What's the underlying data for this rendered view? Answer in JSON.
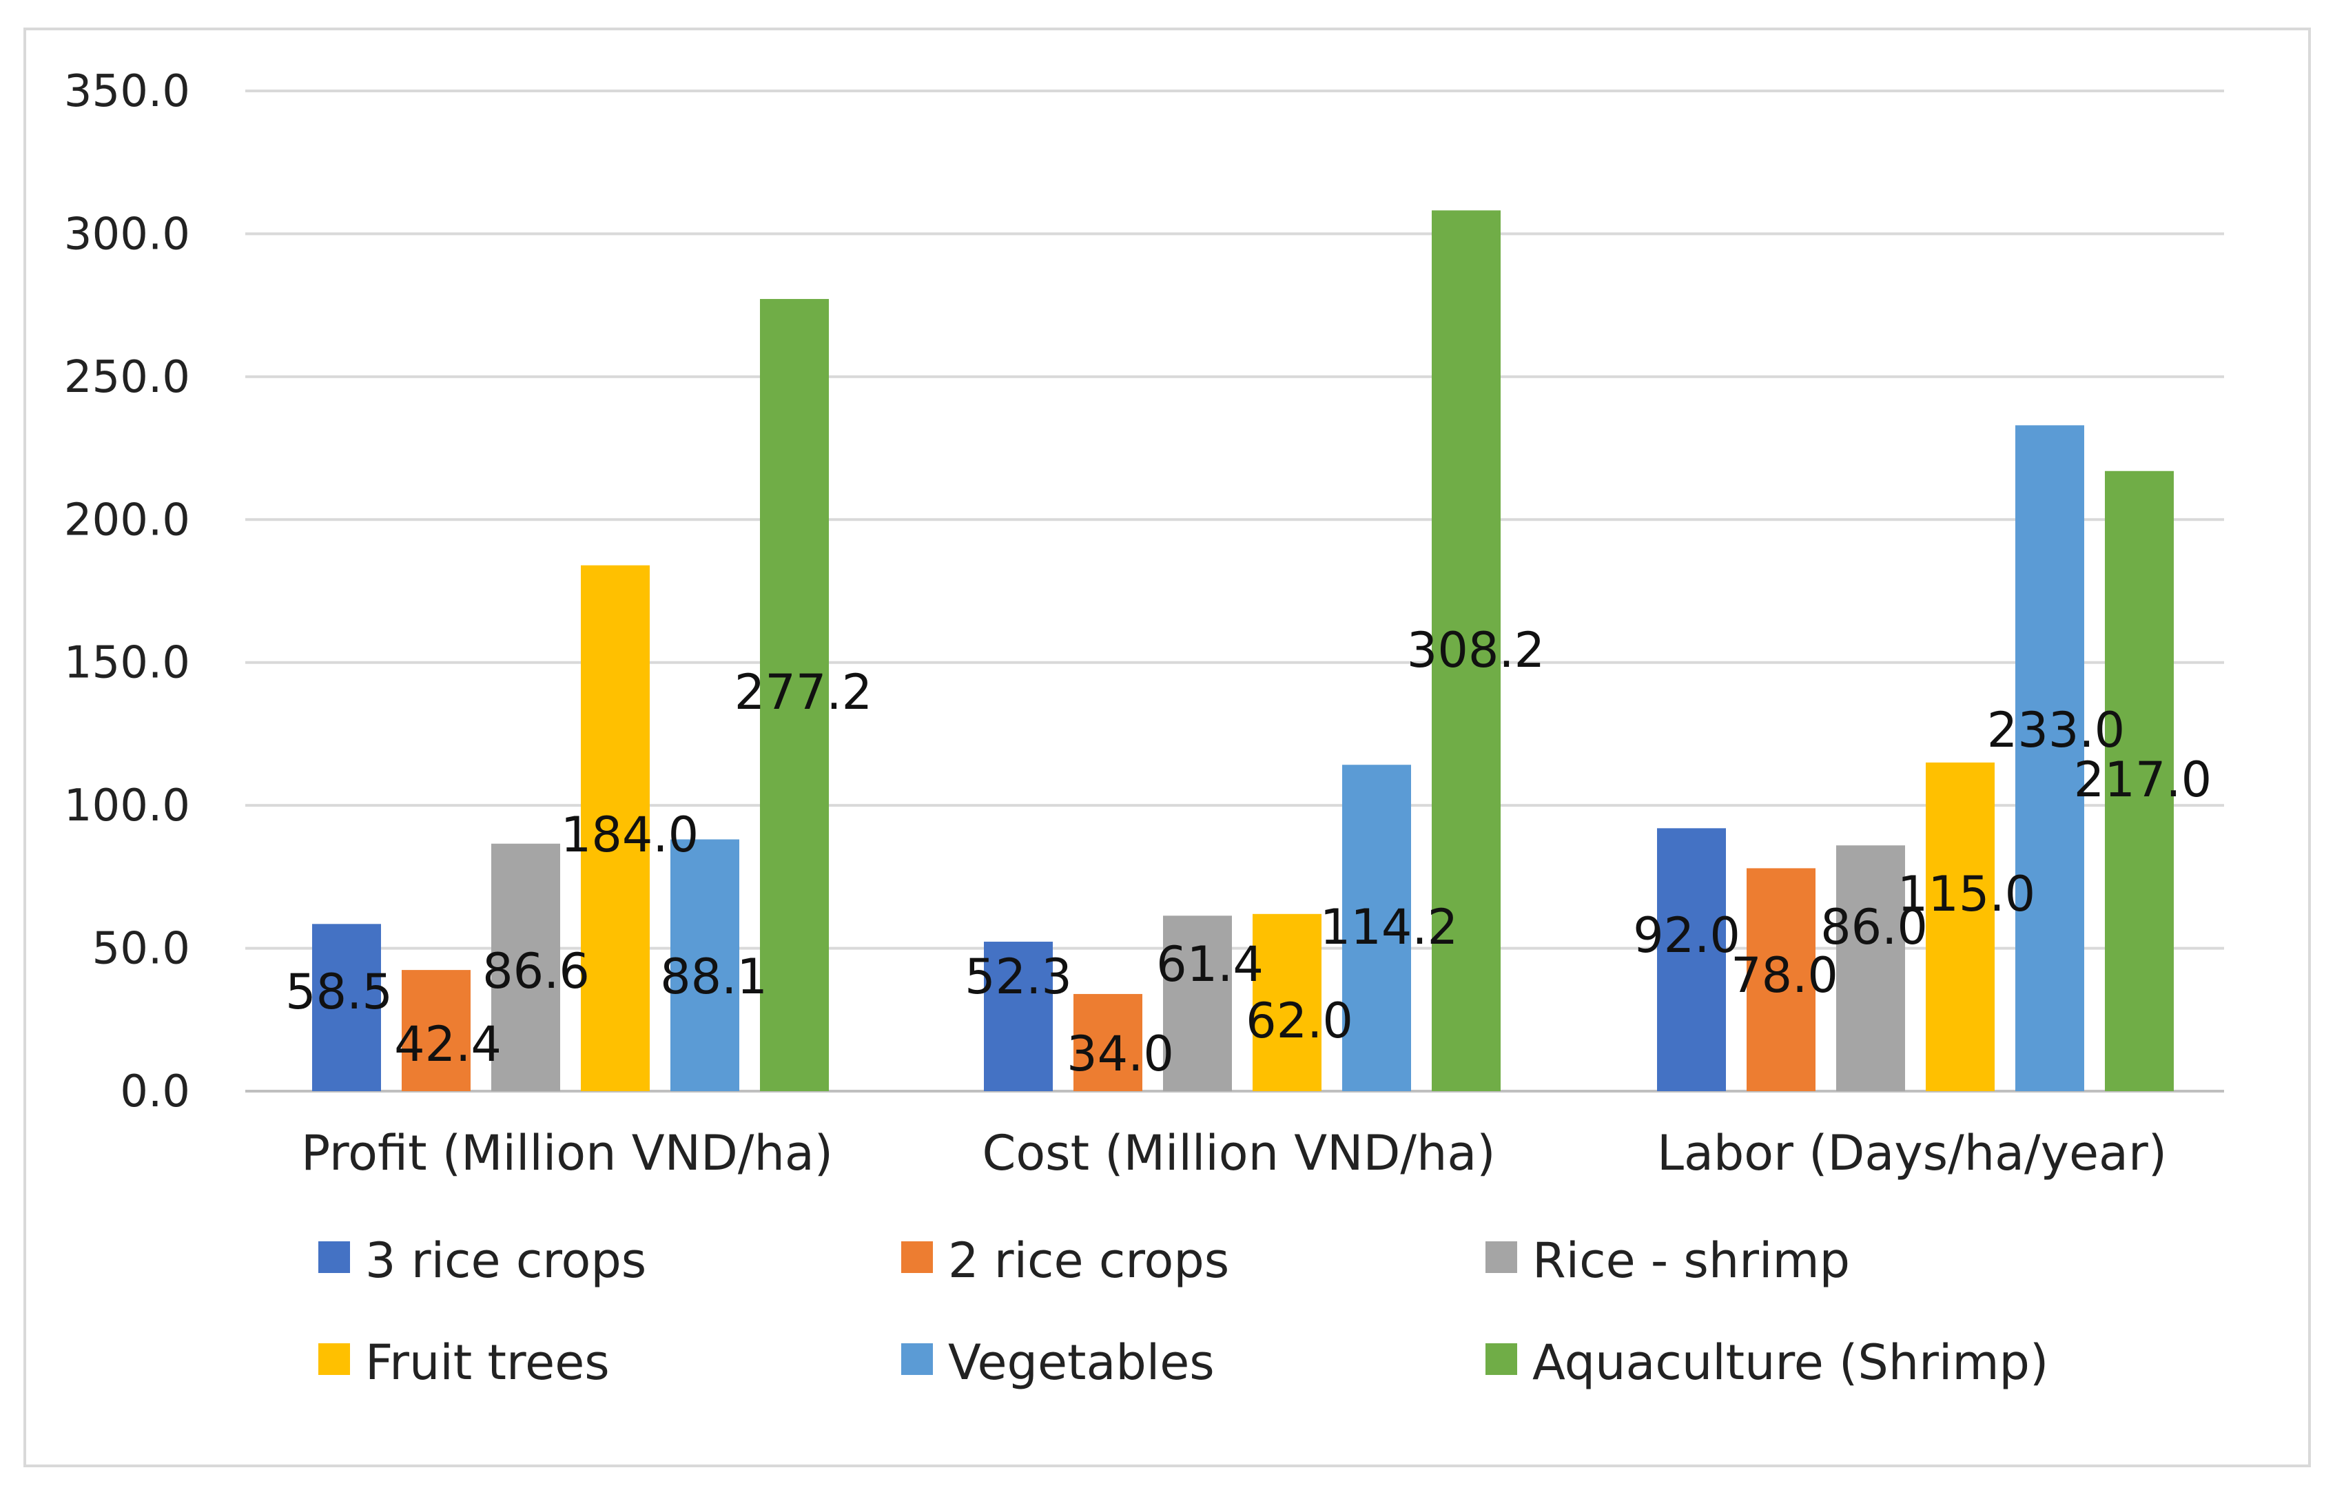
{
  "chart_data": {
    "type": "bar",
    "title": "",
    "xlabel": "",
    "ylabel": "",
    "ylim": [
      0,
      350
    ],
    "yticks": [
      0,
      50,
      100,
      150,
      200,
      250,
      300,
      350
    ],
    "ytick_labels": [
      "0.0",
      "50.0",
      "100.0",
      "150.0",
      "200.0",
      "250.0",
      "300.0",
      "350.0"
    ],
    "grid": true,
    "legend_position": "bottom",
    "categories": [
      "Profit (Million VND/ha)",
      "Cost (Million VND/ha)",
      "Labor (Days/ha/year)"
    ],
    "series": [
      {
        "name": "3 rice crops",
        "color": "#4472c4",
        "values": [
          58.5,
          52.3,
          92.0
        ],
        "labels": [
          "58.5",
          "52.3",
          "92.0"
        ]
      },
      {
        "name": "2 rice crops",
        "color": "#ed7d31",
        "values": [
          42.4,
          34.0,
          78.0
        ],
        "labels": [
          "42.4",
          "34.0",
          "78.0"
        ]
      },
      {
        "name": "Rice - shrimp",
        "color": "#a5a5a5",
        "values": [
          86.6,
          61.4,
          86.0
        ],
        "labels": [
          "86.6",
          "61.4",
          "86.0"
        ]
      },
      {
        "name": "Fruit trees",
        "color": "#ffc000",
        "values": [
          184.0,
          62.0,
          115.0
        ],
        "labels": [
          "184.0",
          "62.0",
          "115.0"
        ]
      },
      {
        "name": "Vegetables",
        "color": "#5b9bd5",
        "values": [
          88.1,
          114.2,
          233.0
        ],
        "labels": [
          "88.1",
          "114.2",
          "233.0"
        ]
      },
      {
        "name": "Aquaculture (Shrimp)",
        "color": "#70ad47",
        "values": [
          277.2,
          308.2,
          217.0
        ],
        "labels": [
          "277.2",
          "308.2",
          "217.0"
        ]
      }
    ]
  }
}
